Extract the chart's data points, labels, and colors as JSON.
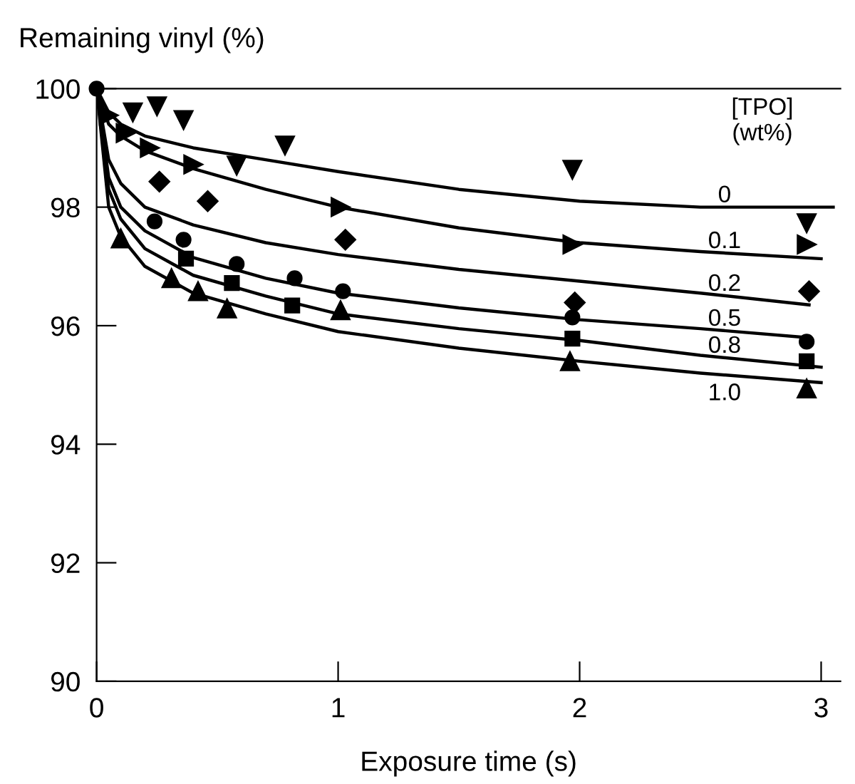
{
  "chart_data": {
    "type": "scatter",
    "xlabel": "Exposure time (s)",
    "ylabel": "Remaining vinyl (%)",
    "legend_title": "[TPO]\n(wt%)",
    "xlim": [
      0,
      3.08
    ],
    "ylim": [
      90,
      100
    ],
    "xticks": [
      0,
      1,
      2,
      3
    ],
    "yticks": [
      90,
      92,
      94,
      96,
      98,
      100
    ],
    "grid": false,
    "legend": false,
    "series": [
      {
        "color": "#000000",
        "marker": "triangle",
        "x": [
          0.15,
          0.25,
          0.36,
          0.58,
          0.78,
          1.97,
          2.94
        ],
        "values": [
          99.6,
          99.7,
          99.47,
          98.7,
          99.04,
          98.63,
          97.73
        ]
      },
      {
        "color": "#000000",
        "marker": "triangle",
        "x": [
          0.05,
          0.12,
          0.22,
          0.4,
          1.01,
          1.97,
          2.94
        ],
        "values": [
          99.55,
          99.25,
          99.0,
          98.72,
          98.0,
          97.37,
          97.37
        ]
      },
      {
        "color": "#000000",
        "marker": "diamond",
        "x": [
          0.26,
          0.46,
          1.03,
          1.98,
          2.95
        ],
        "values": [
          98.43,
          98.1,
          97.45,
          96.39,
          96.58
        ]
      },
      {
        "color": "#000000",
        "marker": "circle",
        "x": [
          0,
          0.24,
          0.36,
          0.58,
          0.82,
          1.02,
          1.97,
          2.94
        ],
        "values": [
          100,
          97.76,
          97.45,
          97.04,
          96.8,
          96.58,
          96.14,
          95.73
        ]
      },
      {
        "color": "#000000",
        "marker": "square",
        "x": [
          0.37,
          0.56,
          0.81,
          1.97,
          2.94
        ],
        "values": [
          97.13,
          96.72,
          96.34,
          95.78,
          95.4
        ]
      },
      {
        "color": "#000000",
        "marker": "triangle",
        "x": [
          0.1,
          0.31,
          0.42,
          0.54,
          1.01,
          1.96,
          2.94
        ],
        "values": [
          97.47,
          96.8,
          96.58,
          96.29,
          96.26,
          95.4,
          94.94
        ]
      },
      {
        "type": "line",
        "name": "0",
        "color": "#000000",
        "marker": "none",
        "x": [
          0,
          0.05,
          0.1,
          0.2,
          0.4,
          0.7,
          1,
          1.5,
          2,
          2.5,
          3.05
        ],
        "values": [
          100,
          99.6,
          99.4,
          99.2,
          99.0,
          98.8,
          98.6,
          98.3,
          98.1,
          98.0,
          98.0
        ]
      },
      {
        "type": "line",
        "name": "0.1",
        "color": "#000000",
        "marker": "none",
        "x": [
          0,
          0.05,
          0.1,
          0.2,
          0.4,
          0.7,
          1,
          1.5,
          2,
          2.5,
          3.0
        ],
        "values": [
          100,
          99.4,
          99.2,
          98.95,
          98.65,
          98.3,
          98.0,
          97.65,
          97.4,
          97.25,
          97.13
        ]
      },
      {
        "type": "line",
        "name": "0.2",
        "color": "#000000",
        "marker": "none",
        "x": [
          0,
          0.05,
          0.1,
          0.2,
          0.4,
          0.7,
          1,
          1.5,
          2,
          2.5,
          2.95
        ],
        "values": [
          100,
          98.8,
          98.4,
          98.0,
          97.7,
          97.4,
          97.2,
          96.95,
          96.75,
          96.55,
          96.35
        ]
      },
      {
        "type": "line",
        "name": "0.5",
        "color": "#000000",
        "marker": "none",
        "x": [
          0,
          0.05,
          0.1,
          0.2,
          0.4,
          0.7,
          1,
          1.5,
          2,
          2.5,
          2.94
        ],
        "values": [
          100,
          98.5,
          98.0,
          97.6,
          97.15,
          96.8,
          96.55,
          96.3,
          96.1,
          95.95,
          95.8
        ]
      },
      {
        "type": "line",
        "name": "0.8",
        "color": "#000000",
        "marker": "none",
        "x": [
          0,
          0.05,
          0.1,
          0.2,
          0.4,
          0.7,
          1,
          1.5,
          2,
          2.5,
          3.0
        ],
        "values": [
          100,
          98.3,
          97.8,
          97.3,
          96.85,
          96.5,
          96.2,
          95.95,
          95.75,
          95.5,
          95.3
        ]
      },
      {
        "type": "line",
        "name": "1.0",
        "color": "#000000",
        "marker": "none",
        "x": [
          0,
          0.05,
          0.1,
          0.2,
          0.4,
          0.7,
          1,
          1.5,
          2,
          2.5,
          3.0
        ],
        "values": [
          100,
          98.0,
          97.5,
          97.0,
          96.55,
          96.2,
          95.9,
          95.62,
          95.4,
          95.2,
          95.04
        ]
      }
    ]
  }
}
